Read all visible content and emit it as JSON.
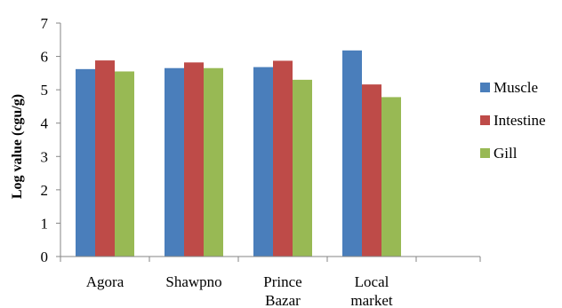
{
  "chart_data": {
    "type": "bar",
    "categories": [
      [
        "Agora"
      ],
      [
        "Shawpno"
      ],
      [
        "Prince",
        "Bazar"
      ],
      [
        "Local",
        "market"
      ]
    ],
    "series": [
      {
        "name": "Muscle",
        "color": "#4a7ebb",
        "values": [
          5.62,
          5.65,
          5.68,
          6.18
        ]
      },
      {
        "name": "Intestine",
        "color": "#be4b48",
        "values": [
          5.88,
          5.82,
          5.87,
          5.16
        ]
      },
      {
        "name": "Gill",
        "color": "#98b954",
        "values": [
          5.55,
          5.65,
          5.3,
          4.78
        ]
      }
    ],
    "title": "",
    "xlabel": "",
    "ylabel": "Log value (cgu/g)",
    "ylim": [
      0,
      7
    ],
    "yticks": [
      0,
      1,
      2,
      3,
      4,
      5,
      6,
      7
    ],
    "grid": false,
    "legend": "right"
  }
}
